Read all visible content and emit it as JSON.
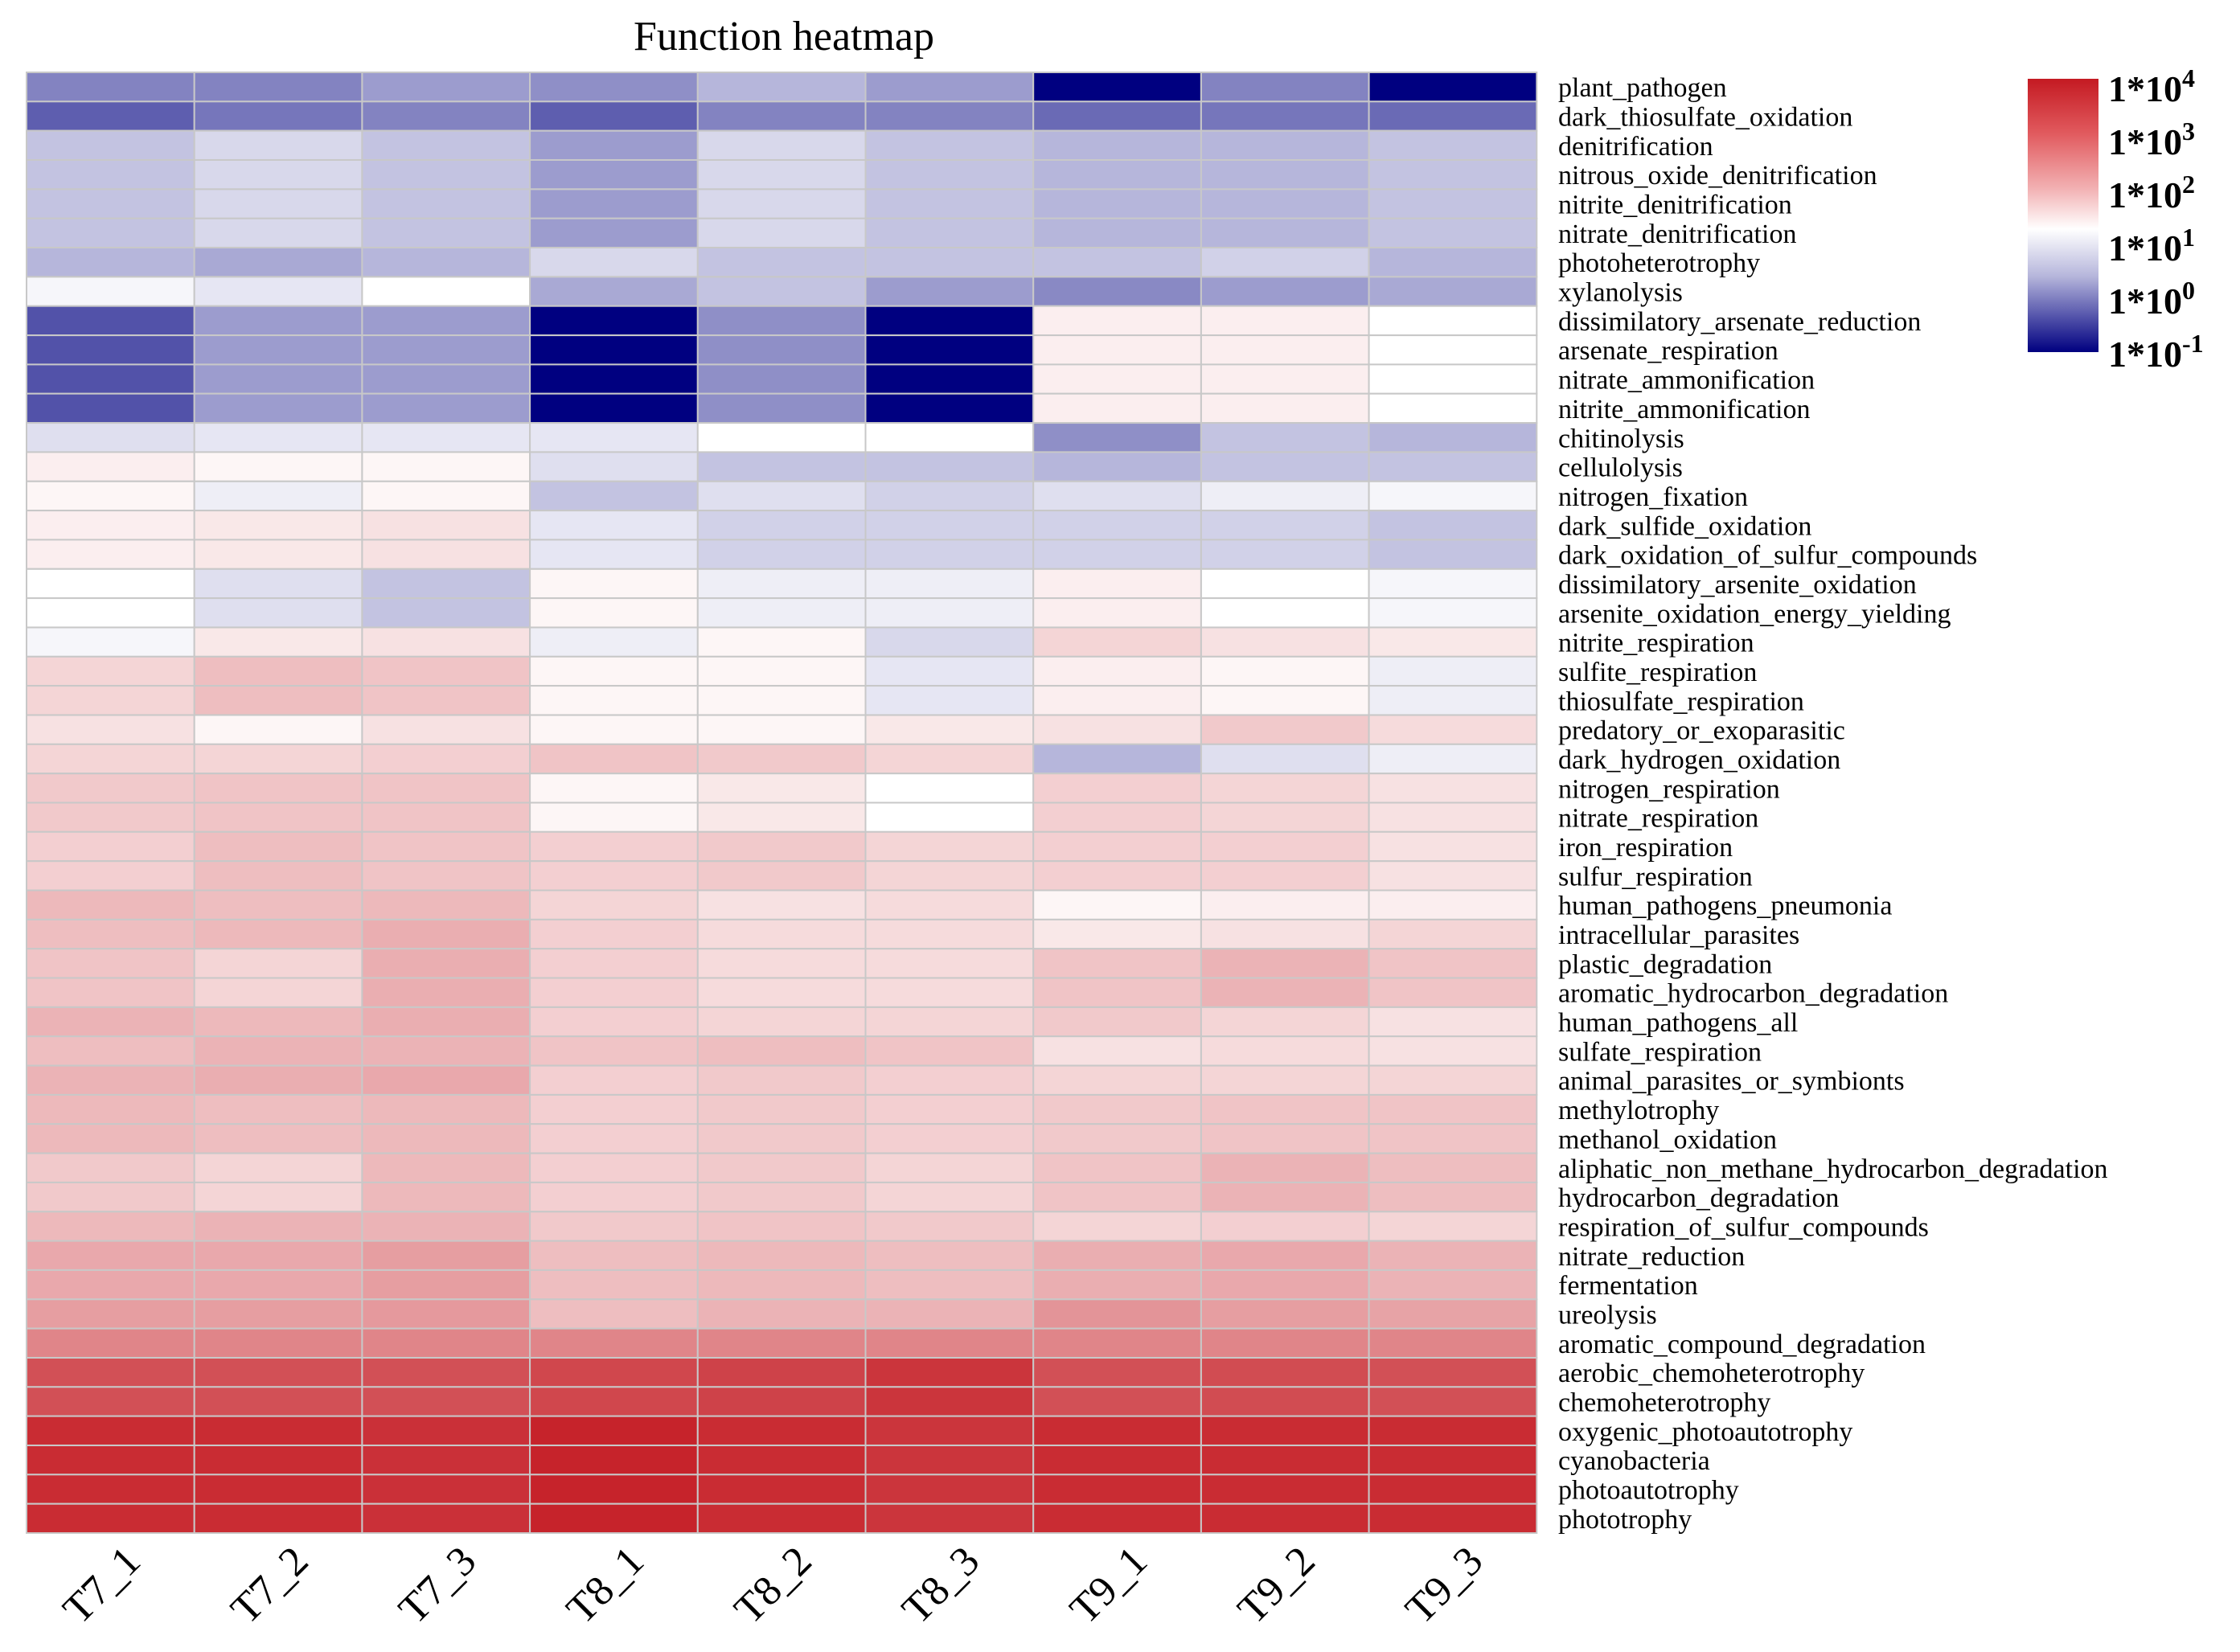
{
  "chart_data": {
    "type": "heatmap",
    "title": "Function heatmap",
    "color_scale": "log10",
    "colors": {
      "low": "#000080",
      "mid": "#ffffff",
      "high": "#c41a22"
    },
    "columns": [
      "T7_1",
      "T7_2",
      "T7_3",
      "T8_1",
      "T8_2",
      "T8_3",
      "T9_1",
      "T9_2",
      "T9_3"
    ],
    "rows": [
      "plant_pathogen",
      "dark_thiosulfate_oxidation",
      "denitrification",
      "nitrous_oxide_denitrification",
      "nitrite_denitrification",
      "nitrate_denitrification",
      "photoheterotrophy",
      "xylanolysis",
      "dissimilatory_arsenate_reduction",
      "arsenate_respiration",
      "nitrate_ammonification",
      "nitrite_ammonification",
      "chitinolysis",
      "cellulolysis",
      "nitrogen_fixation",
      "dark_sulfide_oxidation",
      "dark_oxidation_of_sulfur_compounds",
      "dissimilatory_arsenite_oxidation",
      "arsenite_oxidation_energy_yielding",
      "nitrite_respiration",
      "sulfite_respiration",
      "thiosulfate_respiration",
      "predatory_or_exoparasitic",
      "dark_hydrogen_oxidation",
      "nitrogen_respiration",
      "nitrate_respiration",
      "iron_respiration",
      "sulfur_respiration",
      "human_pathogens_pneumonia",
      "intracellular_parasites",
      "plastic_degradation",
      "aromatic_hydrocarbon_degradation",
      "human_pathogens_all",
      "sulfate_respiration",
      "animal_parasites_or_symbionts",
      "methylotrophy",
      "methanol_oxidation",
      "aliphatic_non_methane_hydrocarbon_degradation",
      "hydrocarbon_degradation",
      "respiration_of_sulfur_compounds",
      "nitrate_reduction",
      "fermentation",
      "ureolysis",
      "aromatic_compound_degradation",
      "aerobic_chemoheterotrophy",
      "chemoheterotrophy",
      "oxygenic_photoautotrophy",
      "cyanobacteria",
      "photoautotrophy",
      "phototrophy"
    ],
    "values": [
      [
        0.1,
        0.1,
        0.3,
        0.2,
        0.5,
        0.3,
        -1.0,
        0.1,
        -1.0
      ],
      [
        -0.2,
        0.0,
        0.1,
        -0.2,
        0.1,
        0.1,
        -0.1,
        0.0,
        -0.1
      ],
      [
        0.6,
        0.75,
        0.6,
        0.3,
        0.75,
        0.6,
        0.5,
        0.5,
        0.6
      ],
      [
        0.6,
        0.75,
        0.6,
        0.3,
        0.75,
        0.6,
        0.5,
        0.5,
        0.6
      ],
      [
        0.6,
        0.75,
        0.6,
        0.3,
        0.75,
        0.6,
        0.5,
        0.5,
        0.6
      ],
      [
        0.6,
        0.75,
        0.6,
        0.3,
        0.75,
        0.6,
        0.5,
        0.5,
        0.6
      ],
      [
        0.5,
        0.4,
        0.5,
        0.75,
        0.6,
        0.6,
        0.6,
        0.7,
        0.5
      ],
      [
        0.95,
        0.85,
        1.0,
        0.4,
        0.6,
        0.3,
        0.15,
        0.3,
        0.4
      ],
      [
        -0.3,
        0.3,
        0.3,
        -1.0,
        0.2,
        -1.0,
        1.1,
        1.1,
        1.0
      ],
      [
        -0.3,
        0.3,
        0.3,
        -1.0,
        0.2,
        -1.0,
        1.1,
        1.1,
        1.0
      ],
      [
        -0.3,
        0.3,
        0.3,
        -1.0,
        0.2,
        -1.0,
        1.1,
        1.1,
        1.0
      ],
      [
        -0.3,
        0.3,
        0.3,
        -1.0,
        0.2,
        -1.0,
        1.1,
        1.1,
        1.0
      ],
      [
        0.8,
        0.85,
        0.85,
        0.85,
        1.0,
        1.0,
        0.2,
        0.6,
        0.5
      ],
      [
        1.1,
        1.05,
        1.05,
        0.8,
        0.6,
        0.6,
        0.5,
        0.6,
        0.6
      ],
      [
        1.05,
        0.9,
        1.05,
        0.6,
        0.8,
        0.7,
        0.8,
        0.9,
        0.95
      ],
      [
        1.1,
        1.15,
        1.2,
        0.85,
        0.7,
        0.7,
        0.7,
        0.7,
        0.6
      ],
      [
        1.1,
        1.15,
        1.2,
        0.85,
        0.7,
        0.7,
        0.7,
        0.7,
        0.6
      ],
      [
        1.0,
        0.8,
        0.6,
        1.05,
        0.9,
        0.9,
        1.1,
        1.0,
        0.95
      ],
      [
        1.0,
        0.8,
        0.6,
        1.05,
        0.9,
        0.9,
        1.1,
        1.0,
        0.95
      ],
      [
        0.95,
        1.15,
        1.2,
        0.9,
        1.05,
        0.75,
        1.3,
        1.2,
        1.15
      ],
      [
        1.3,
        1.5,
        1.45,
        1.05,
        1.05,
        0.85,
        1.1,
        1.05,
        0.9
      ],
      [
        1.3,
        1.5,
        1.45,
        1.05,
        1.05,
        0.85,
        1.1,
        1.05,
        0.9
      ],
      [
        1.2,
        1.05,
        1.2,
        1.05,
        1.05,
        1.15,
        1.2,
        1.4,
        1.25
      ],
      [
        1.3,
        1.3,
        1.35,
        1.45,
        1.4,
        1.3,
        0.5,
        0.8,
        0.9
      ],
      [
        1.4,
        1.45,
        1.45,
        1.05,
        1.15,
        1.0,
        1.35,
        1.3,
        1.2
      ],
      [
        1.4,
        1.45,
        1.45,
        1.05,
        1.15,
        1.0,
        1.35,
        1.3,
        1.2
      ],
      [
        1.35,
        1.5,
        1.45,
        1.35,
        1.4,
        1.3,
        1.35,
        1.35,
        1.2
      ],
      [
        1.35,
        1.5,
        1.45,
        1.35,
        1.4,
        1.3,
        1.35,
        1.35,
        1.2
      ],
      [
        1.55,
        1.5,
        1.55,
        1.3,
        1.2,
        1.25,
        1.05,
        1.1,
        1.1
      ],
      [
        1.5,
        1.55,
        1.65,
        1.35,
        1.25,
        1.25,
        1.15,
        1.2,
        1.3
      ],
      [
        1.45,
        1.3,
        1.65,
        1.35,
        1.25,
        1.25,
        1.45,
        1.6,
        1.45
      ],
      [
        1.45,
        1.3,
        1.65,
        1.35,
        1.25,
        1.25,
        1.45,
        1.6,
        1.45
      ],
      [
        1.6,
        1.55,
        1.65,
        1.35,
        1.3,
        1.3,
        1.4,
        1.3,
        1.2
      ],
      [
        1.5,
        1.6,
        1.6,
        1.45,
        1.5,
        1.45,
        1.2,
        1.25,
        1.2
      ],
      [
        1.6,
        1.65,
        1.7,
        1.35,
        1.4,
        1.35,
        1.3,
        1.3,
        1.3
      ],
      [
        1.55,
        1.5,
        1.55,
        1.35,
        1.4,
        1.35,
        1.4,
        1.45,
        1.45
      ],
      [
        1.55,
        1.5,
        1.55,
        1.35,
        1.4,
        1.35,
        1.4,
        1.45,
        1.45
      ],
      [
        1.4,
        1.3,
        1.55,
        1.35,
        1.4,
        1.3,
        1.45,
        1.6,
        1.5
      ],
      [
        1.4,
        1.3,
        1.55,
        1.35,
        1.4,
        1.3,
        1.45,
        1.6,
        1.5
      ],
      [
        1.55,
        1.6,
        1.6,
        1.4,
        1.45,
        1.4,
        1.3,
        1.35,
        1.3
      ],
      [
        1.7,
        1.7,
        1.8,
        1.5,
        1.55,
        1.5,
        1.65,
        1.7,
        1.6
      ],
      [
        1.7,
        1.7,
        1.8,
        1.5,
        1.55,
        1.5,
        1.65,
        1.7,
        1.6
      ],
      [
        1.8,
        1.8,
        1.85,
        1.5,
        1.6,
        1.6,
        1.9,
        1.8,
        1.75
      ],
      [
        2.05,
        2.05,
        2.05,
        2.05,
        2.05,
        2.05,
        2.05,
        2.05,
        2.05
      ],
      [
        2.6,
        2.6,
        2.6,
        2.7,
        2.75,
        2.9,
        2.6,
        2.65,
        2.6
      ],
      [
        2.6,
        2.6,
        2.6,
        2.7,
        2.75,
        2.9,
        2.6,
        2.65,
        2.6
      ],
      [
        3.0,
        3.0,
        2.95,
        3.1,
        3.0,
        2.9,
        3.0,
        3.0,
        3.0
      ],
      [
        3.0,
        3.0,
        2.95,
        3.1,
        3.0,
        2.9,
        3.0,
        3.0,
        3.0
      ],
      [
        3.0,
        3.0,
        2.95,
        3.1,
        3.0,
        2.9,
        3.0,
        3.0,
        3.0
      ],
      [
        3.0,
        3.0,
        2.95,
        3.1,
        3.0,
        2.9,
        3.0,
        3.0,
        3.0
      ]
    ],
    "legend": {
      "ticks": [
        "1*10",
        "1*10",
        "1*10",
        "1*10",
        "1*10",
        "1*10"
      ],
      "exponents": [
        "4",
        "3",
        "2",
        "1",
        "0",
        "-1"
      ],
      "placement": "top-right"
    }
  }
}
